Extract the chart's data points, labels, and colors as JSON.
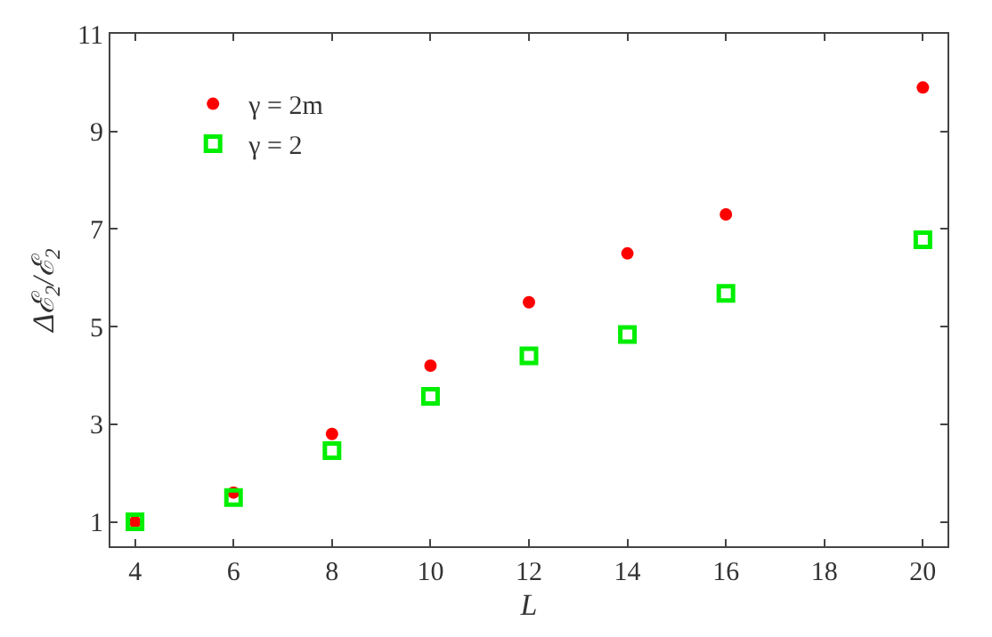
{
  "chart_data": {
    "type": "scatter",
    "xlabel": "L",
    "ylabel": "Δℰ$_{2}$/ℰ$_{2}$",
    "x": [
      4,
      6,
      8,
      10,
      12,
      14,
      16,
      20
    ],
    "series": [
      {
        "name": "γ = 2m",
        "color": "#ff0000",
        "marker": "circle",
        "values": [
          1.0,
          1.6,
          2.8,
          4.2,
          5.5,
          6.5,
          7.3,
          9.9
        ]
      },
      {
        "name": "γ = 2",
        "color": "#00ee00",
        "marker": "square",
        "values": [
          1.0,
          1.5,
          2.46,
          3.57,
          4.4,
          4.84,
          5.68,
          6.78
        ]
      }
    ],
    "xlim": [
      3.5,
      20.5
    ],
    "xticks": [
      4,
      6,
      8,
      10,
      12,
      14,
      16,
      18,
      20
    ],
    "ylim": [
      0.5,
      11
    ],
    "yticks": [
      1,
      3,
      5,
      7,
      9,
      11
    ],
    "legend": "top left"
  }
}
